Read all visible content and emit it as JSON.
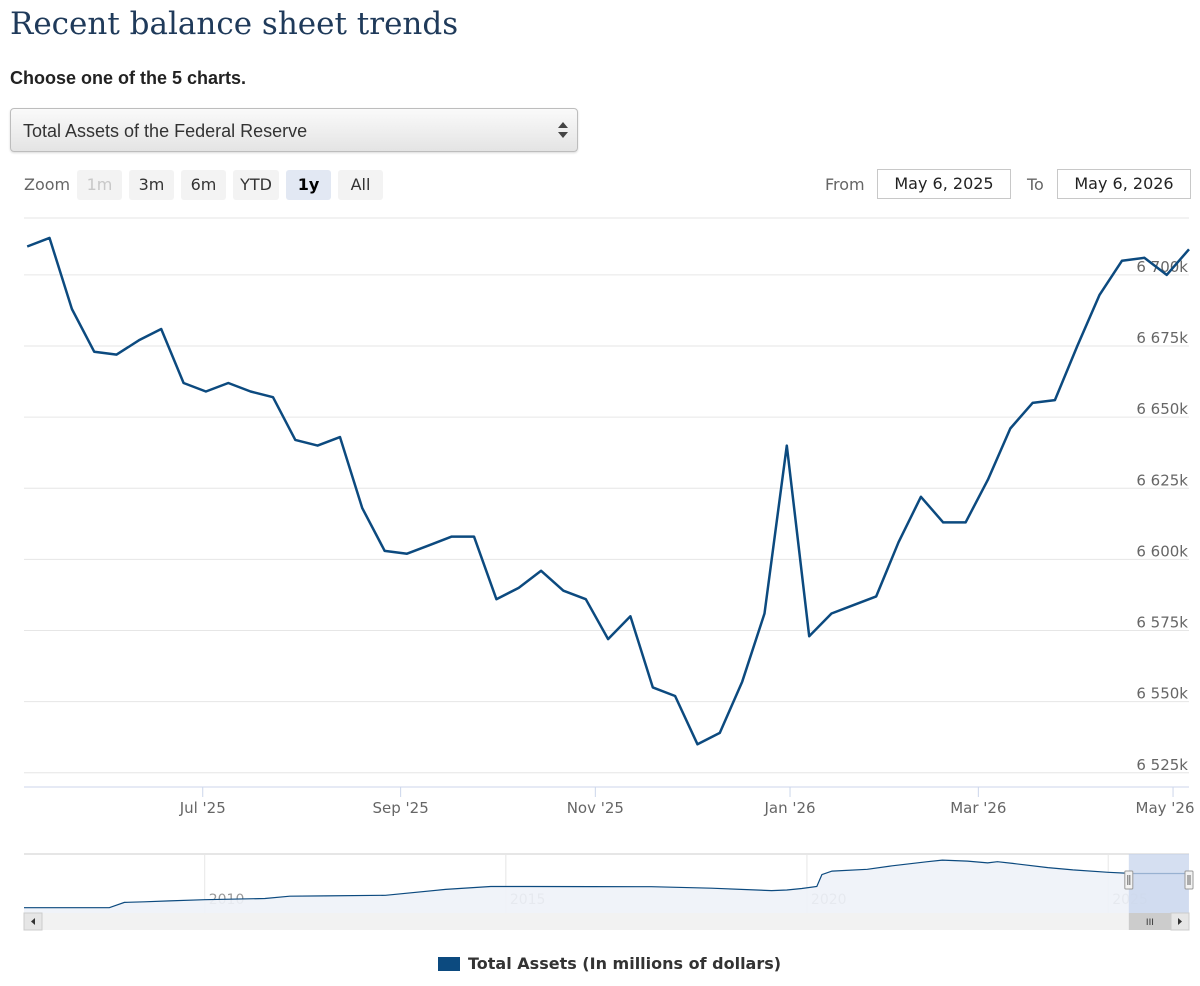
{
  "page": {
    "title": "Recent balance sheet trends",
    "subtitle": "Choose one of the 5 charts."
  },
  "selector": {
    "selected": "Total Assets of the Federal Reserve"
  },
  "range_selector": {
    "zoom_label": "Zoom",
    "buttons": [
      "1m",
      "3m",
      "6m",
      "YTD",
      "1y",
      "All"
    ],
    "active": "1y",
    "disabled": [
      "1m"
    ],
    "from_label": "From",
    "from_value": "May 6, 2025",
    "to_label": "To",
    "to_value": "May 6, 2026"
  },
  "colors": {
    "series": "#0c4a7f",
    "navigator_fill": "#eef2f8",
    "navigator_mask": "#c7d4ec"
  },
  "chart_data": {
    "type": "line",
    "series": [
      {
        "name": "Total Assets (In millions of dollars)",
        "x": [
          "2025-05-07",
          "2025-05-14",
          "2025-05-21",
          "2025-05-28",
          "2025-06-04",
          "2025-06-11",
          "2025-06-18",
          "2025-06-25",
          "2025-07-02",
          "2025-07-09",
          "2025-07-16",
          "2025-07-23",
          "2025-07-30",
          "2025-08-06",
          "2025-08-13",
          "2025-08-20",
          "2025-08-27",
          "2025-09-03",
          "2025-09-10",
          "2025-09-17",
          "2025-09-24",
          "2025-10-01",
          "2025-10-08",
          "2025-10-15",
          "2025-10-22",
          "2025-10-29",
          "2025-11-05",
          "2025-11-12",
          "2025-11-19",
          "2025-11-26",
          "2025-12-03",
          "2025-12-10",
          "2025-12-17",
          "2025-12-24",
          "2025-12-31",
          "2026-01-07",
          "2026-01-14",
          "2026-01-21",
          "2026-01-28",
          "2026-02-04",
          "2026-02-11",
          "2026-02-18",
          "2026-02-25",
          "2026-03-04",
          "2026-03-11",
          "2026-03-18",
          "2026-03-25",
          "2026-04-01",
          "2026-04-08",
          "2026-04-15",
          "2026-04-22",
          "2026-04-29",
          "2026-05-06"
        ],
        "values": [
          6710,
          6713,
          6688,
          6673,
          6672,
          6677,
          6681,
          6662,
          6659,
          6662,
          6659,
          6657,
          6642,
          6640,
          6643,
          6618,
          6603,
          6602,
          6605,
          6608,
          6608,
          6586,
          6590,
          6596,
          6589,
          6586,
          6572,
          6580,
          6555,
          6552,
          6535,
          6539,
          6557,
          6581,
          6640,
          6573,
          6581,
          6584,
          6587,
          6606,
          6622,
          6613,
          6613,
          6628,
          6646,
          6655,
          6656,
          6675,
          6693,
          6705,
          6706,
          6700,
          6709
        ]
      }
    ],
    "xlabel": "",
    "ylabel": "",
    "x_ticks": [
      "Jul '25",
      "Sep '25",
      "Nov '25",
      "Jan '26",
      "Mar '26",
      "May '26"
    ],
    "y_ticks": [
      "6 525k",
      "6 550k",
      "6 575k",
      "6 600k",
      "6 625k",
      "6 650k",
      "6 675k",
      "6 700k"
    ],
    "ylim": [
      6520,
      6720
    ],
    "xlim": [
      "2025-05-06",
      "2026-05-06"
    ],
    "grid": "horizontal",
    "legend": "bottom-center",
    "navigator": {
      "x_ticks": [
        "2010",
        "2015",
        "2020",
        "2025"
      ],
      "xlim": [
        "2007-01-01",
        "2026-05-06"
      ],
      "x": [
        "2007-01",
        "2008-06",
        "2008-09",
        "2009-01",
        "2009-06",
        "2010-01",
        "2011-01",
        "2011-06",
        "2012-01",
        "2013-01",
        "2014-01",
        "2014-10",
        "2015-06",
        "2016-06",
        "2017-06",
        "2018-06",
        "2019-06",
        "2019-09",
        "2019-12",
        "2020-03",
        "2020-04",
        "2020-06",
        "2021-01",
        "2021-06",
        "2022-01",
        "2022-04",
        "2022-09",
        "2023-01",
        "2023-03",
        "2023-06",
        "2024-01",
        "2024-06",
        "2025-01",
        "2025-06",
        "2026-05"
      ],
      "values": [
        890,
        900,
        1800,
        1900,
        2050,
        2250,
        2450,
        2850,
        2900,
        3000,
        4000,
        4500,
        4500,
        4480,
        4460,
        4200,
        3800,
        3900,
        4150,
        4500,
        6500,
        7100,
        7400,
        8000,
        8700,
        8960,
        8800,
        8500,
        8700,
        8400,
        7700,
        7300,
        6900,
        6700,
        6700
      ],
      "ylim": [
        0,
        10000
      ]
    }
  },
  "scroll": {
    "left_arrow": "◂",
    "right_arrow": "▸",
    "thumb_grip": "III"
  }
}
